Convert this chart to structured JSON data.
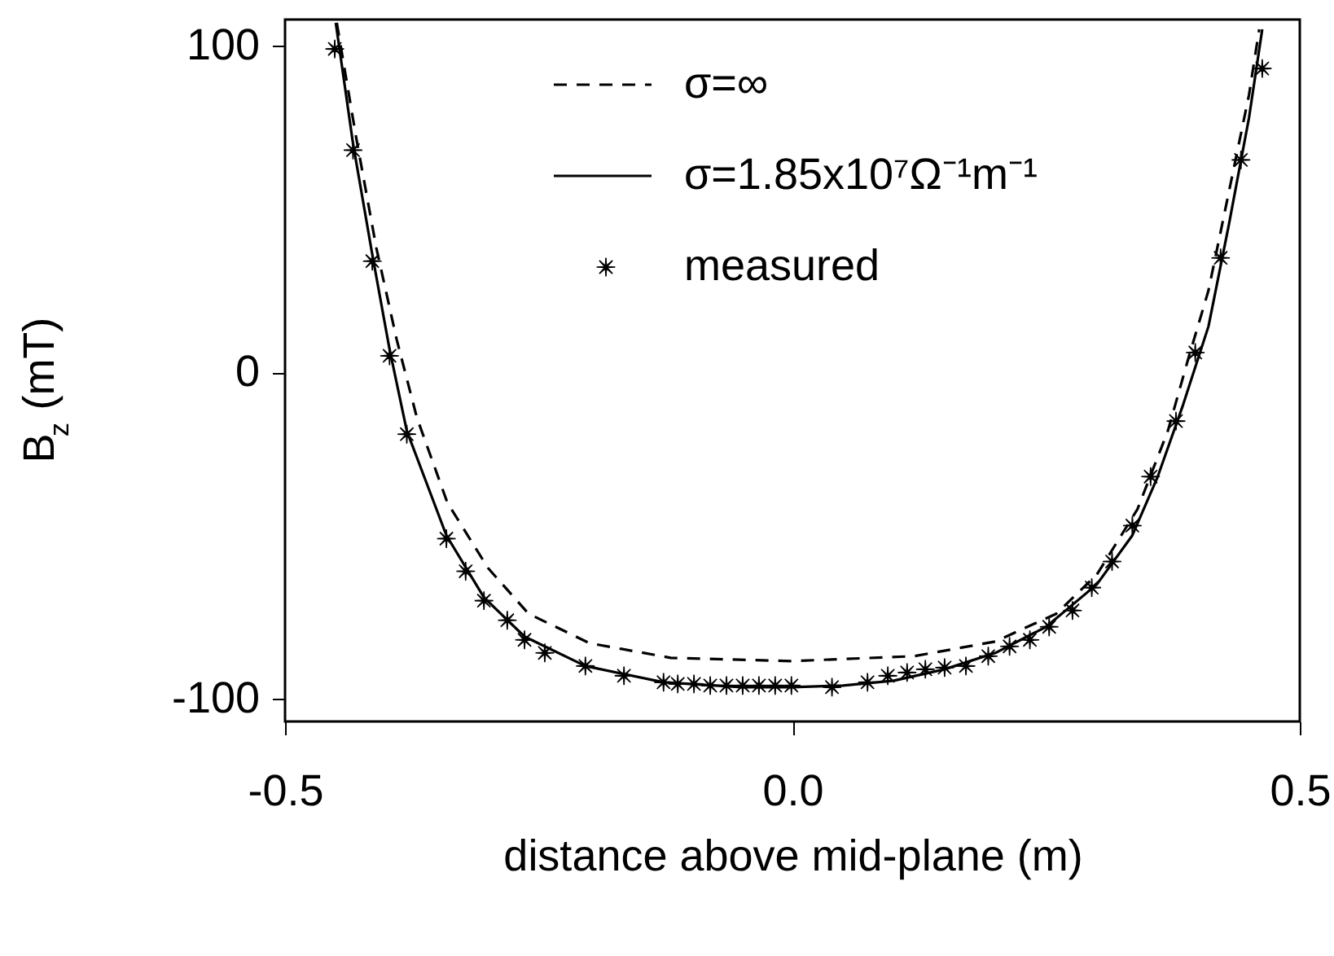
{
  "chart_data": {
    "type": "line",
    "xlabel": "distance above mid-plane (m)",
    "ylabel": "B$_{z}$ (mT)",
    "xlim": [
      -0.5,
      0.5
    ],
    "ylim": [
      -107,
      108
    ],
    "xticks": [
      -0.5,
      {
        "value": 0,
        "label": "0.0"
      },
      0.5
    ],
    "yticks": [
      -100,
      0,
      100
    ],
    "grid": false,
    "legend": "top",
    "series": [
      {
        "name": "σ=∞",
        "type": "line",
        "color": "#000000",
        "line_style": "dashed",
        "marker": "none",
        "x": [
          -0.449,
          -0.43,
          -0.41,
          -0.39,
          -0.37,
          -0.34,
          -0.3,
          -0.26,
          -0.2,
          -0.12,
          0,
          0.12,
          0.2,
          0.26,
          0.3,
          0.34,
          0.37,
          0.39,
          0.41,
          0.43,
          0.45,
          0.46
        ],
        "values": [
          107,
          72,
          38,
          10,
          -14,
          -40,
          -60,
          -74,
          -83,
          -87.5,
          -88.5,
          -87,
          -82.5,
          -74,
          -62,
          -42,
          -18,
          4,
          25,
          55,
          85,
          105
        ]
      },
      {
        "name": "σ=1.85x10⁷Ω⁻¹m⁻¹",
        "type": "line",
        "color": "#000000",
        "line_style": "solid",
        "marker": "none",
        "x": [
          -0.45,
          -0.433,
          -0.414,
          -0.397,
          -0.38,
          -0.341,
          -0.304,
          -0.264,
          -0.204,
          -0.127,
          -0.05,
          0,
          0.05,
          0.1,
          0.15,
          0.2,
          0.25,
          0.3,
          0.335,
          0.36,
          0.385,
          0.41,
          0.43,
          0.45,
          0.463
        ],
        "values": [
          107,
          70,
          36,
          7,
          -18,
          -50,
          -69,
          -81,
          -90,
          -95,
          -96.5,
          -96.5,
          -96,
          -94.5,
          -91,
          -86,
          -78,
          -65,
          -50,
          -32,
          -10,
          14,
          45,
          78,
          105
        ]
      },
      {
        "name": "measured",
        "type": "scatter",
        "color": "#000000",
        "marker": "star",
        "x": [
          -0.451,
          -0.433,
          -0.414,
          -0.397,
          -0.38,
          -0.341,
          -0.322,
          -0.304,
          -0.281,
          -0.264,
          -0.244,
          -0.204,
          -0.166,
          -0.127,
          -0.113,
          -0.097,
          -0.081,
          -0.065,
          -0.049,
          -0.033,
          -0.017,
          -0.001,
          0.039,
          0.074,
          0.094,
          0.113,
          0.131,
          0.15,
          0.171,
          0.193,
          0.214,
          0.234,
          0.253,
          0.276,
          0.295,
          0.315,
          0.335,
          0.353,
          0.378,
          0.397,
          0.422,
          0.442,
          0.463
        ],
        "values": [
          99,
          68,
          34,
          5,
          -19,
          -51,
          -61,
          -70,
          -76,
          -82,
          -86,
          -90,
          -93,
          -95,
          -95.5,
          -95.5,
          -96,
          -96,
          -96,
          -96,
          -96,
          -96,
          -96.5,
          -95,
          -93,
          -92,
          -91,
          -90.5,
          -90,
          -87,
          -84,
          -82,
          -78,
          -73,
          -66,
          -58,
          -47,
          -32,
          -15,
          6,
          35,
          65,
          93
        ]
      }
    ]
  }
}
